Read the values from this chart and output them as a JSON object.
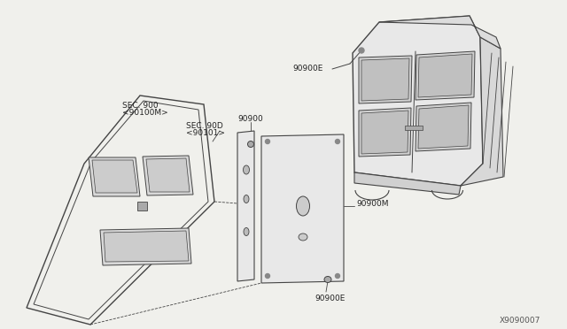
{
  "background_color": "#f0f0ec",
  "line_color": "#444444",
  "text_color": "#222222",
  "diagram_id": "X9090007",
  "door_fill": "#f0f0ec",
  "door_edge": "#444444",
  "panel_fill": "#e8e8e8",
  "window_fill": "#d8d8d8",
  "van_fill": "#e8e8e8",
  "sec900_label": "SEC. 900",
  "sec900_sub": "<90100M>",
  "sec90D_label": "SEC. 90D",
  "sec90D_sub": "<90101>",
  "label_90900": "90900",
  "label_90900E_top": "90900E",
  "label_90900M": "90900M",
  "label_90900E_bot": "90900E"
}
